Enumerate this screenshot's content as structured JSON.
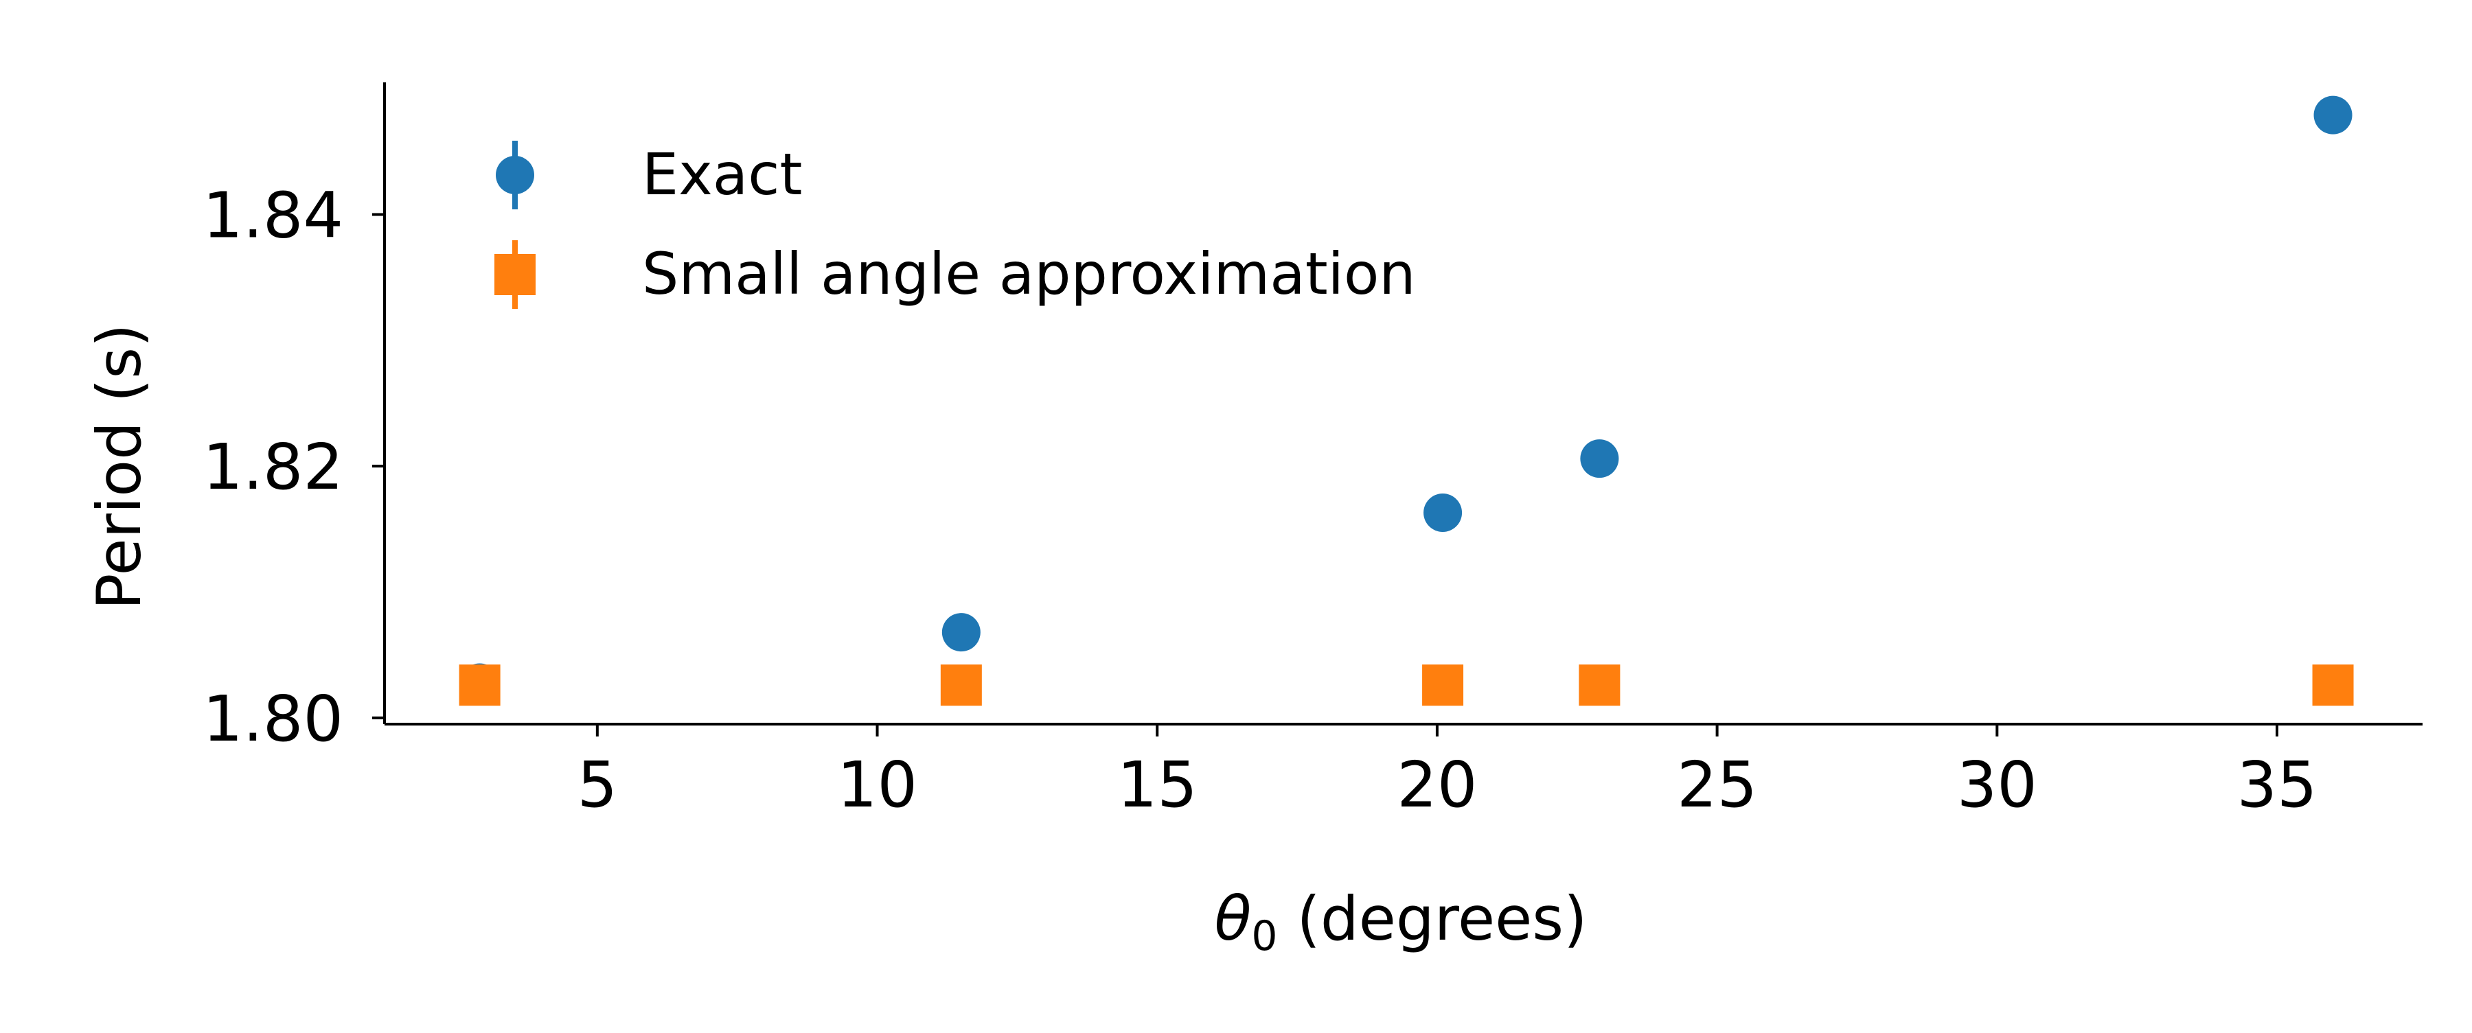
{
  "chart_data": {
    "type": "scatter",
    "title": "",
    "xlabel_symbol": "θ",
    "xlabel_subscript": "0",
    "xlabel_rest": " (degrees)",
    "ylabel": "Period (s)",
    "xlim": [
      1.2,
      37.6
    ],
    "ylim": [
      1.7995,
      1.8505
    ],
    "xticks": [
      5,
      10,
      15,
      20,
      25,
      30,
      35
    ],
    "yticks": [
      1.8,
      1.82,
      1.84
    ],
    "ytick_labels": [
      "1.80",
      "1.82",
      "1.84"
    ],
    "grid": false,
    "legend_position": "upper-left",
    "series": [
      {
        "name": "Exact",
        "marker": "circle",
        "color": "#1f77b4",
        "x": [
          2.9,
          11.5,
          20.1,
          22.9,
          36.0
        ],
        "y": [
          1.8028,
          1.8068,
          1.8163,
          1.8206,
          1.8479
        ]
      },
      {
        "name": "Small angle approximation",
        "marker": "square",
        "color": "#ff7f0e",
        "x": [
          2.9,
          11.5,
          20.1,
          22.9,
          36.0
        ],
        "y": [
          1.8026,
          1.8026,
          1.8026,
          1.8026,
          1.8026
        ]
      }
    ]
  }
}
